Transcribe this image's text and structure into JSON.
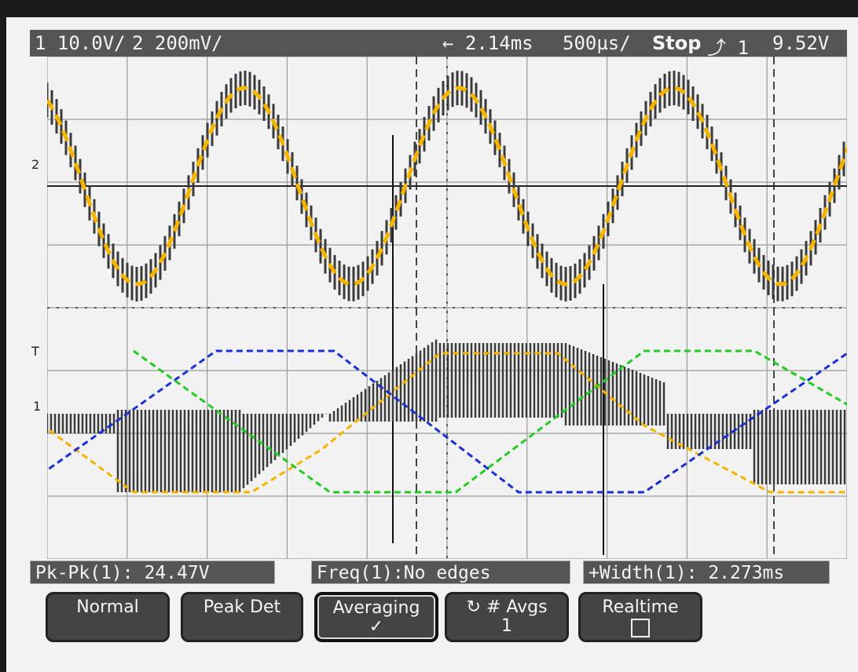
{
  "status_bar": {
    "ch1_scale": "1 10.0V/",
    "ch2_scale": "2 200mV/",
    "time_offset": "← 2.14ms",
    "time_scale": "500µs/",
    "run_state": "Stop",
    "trigger": "⤴ 1",
    "trigger_level": "9.52V"
  },
  "markers": {
    "ch2": "2",
    "trigger_t": "T",
    "ch1": "1"
  },
  "measurements": [
    {
      "label": "Pk-Pk(1): 24.47V"
    },
    {
      "label": "Freq(1):No edges"
    },
    {
      "label": "+Width(1): 2.273ms"
    }
  ],
  "softkeys": [
    {
      "label": "Normal",
      "sub": ""
    },
    {
      "label": "Peak Det",
      "sub": ""
    },
    {
      "label": "Averaging",
      "sub": "✓"
    },
    {
      "label": "↻ # Avgs",
      "sub": "1"
    },
    {
      "label": "Realtime",
      "sub": ""
    }
  ],
  "colors": {
    "trace": "#3a3a3a",
    "overlay_orange": "#f5b400",
    "overlay_blue": "#1a2fd6",
    "overlay_green": "#22cc22",
    "grid": "#9a9a9a"
  }
}
